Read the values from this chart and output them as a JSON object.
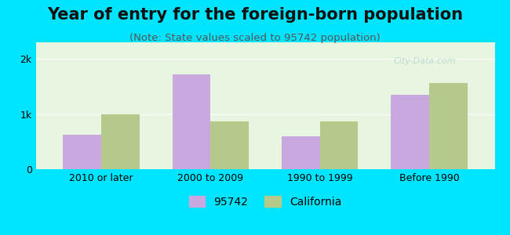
{
  "title": "Year of entry for the foreign-born population",
  "subtitle": "(Note: State values scaled to 95742 population)",
  "categories": [
    "2010 or later",
    "2000 to 2009",
    "1990 to 1999",
    "Before 1990"
  ],
  "values_95742": [
    620,
    1720,
    600,
    1350
  ],
  "values_california": [
    1000,
    860,
    860,
    1560
  ],
  "color_95742": "#c9a8e0",
  "color_california": "#b5c98a",
  "bg_outer": "#00e5ff",
  "bg_chart": "#e8f5e0",
  "ylim": [
    0,
    2300
  ],
  "yticks": [
    0,
    1000,
    2000
  ],
  "ytick_labels": [
    "0",
    "1k",
    "2k"
  ],
  "legend_label_95742": "95742",
  "legend_label_ca": "California",
  "bar_width": 0.35,
  "title_fontsize": 15,
  "subtitle_fontsize": 9.5
}
